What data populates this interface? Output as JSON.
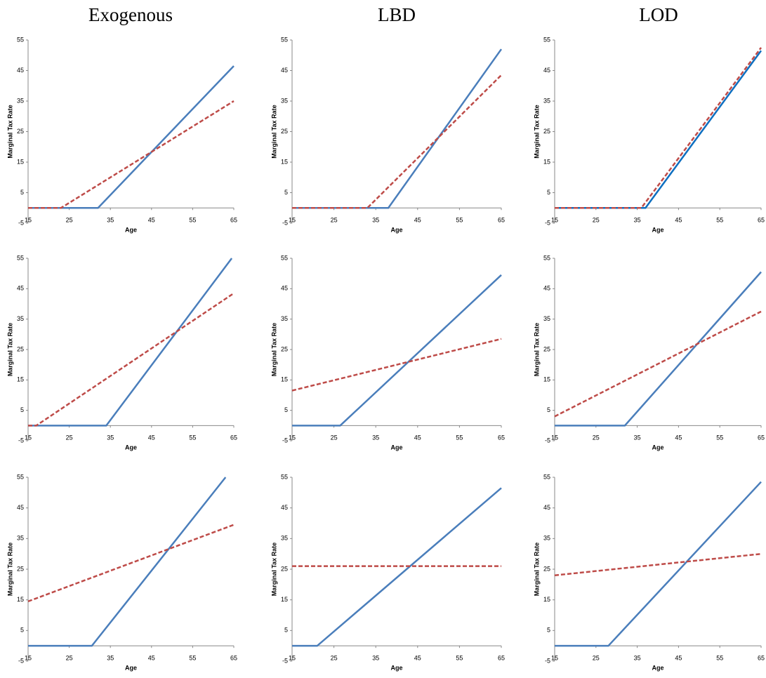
{
  "column_titles": [
    "Exogenous",
    "LBD",
    "LOD"
  ],
  "chart_data": [
    {
      "type": "line",
      "xlabel": "Age",
      "ylabel": "Marginal Tax Rate",
      "xlim": [
        15,
        65
      ],
      "ylim": [
        -5,
        55
      ],
      "xticks": [
        15,
        25,
        35,
        45,
        55,
        65
      ],
      "yticks": [
        -5,
        5,
        15,
        25,
        35,
        45,
        55
      ],
      "series": [
        {
          "color": "#4a7ebb",
          "dashed": false,
          "x": [
            15,
            32,
            65
          ],
          "values": [
            0,
            0,
            46.5
          ]
        },
        {
          "color": "#be4b48",
          "dashed": true,
          "x": [
            15,
            23,
            65
          ],
          "values": [
            0,
            0,
            35
          ]
        }
      ]
    },
    {
      "type": "line",
      "xlabel": "Age",
      "ylabel": "Marginal Tax Rate",
      "xlim": [
        15,
        65
      ],
      "ylim": [
        -5,
        55
      ],
      "xticks": [
        15,
        25,
        35,
        45,
        55,
        65
      ],
      "yticks": [
        -5,
        5,
        15,
        25,
        35,
        45,
        55
      ],
      "series": [
        {
          "color": "#4a7ebb",
          "dashed": false,
          "x": [
            15,
            38,
            65
          ],
          "values": [
            0,
            0,
            52
          ]
        },
        {
          "color": "#be4b48",
          "dashed": true,
          "x": [
            15,
            33,
            65
          ],
          "values": [
            0,
            0,
            43.5
          ]
        }
      ]
    },
    {
      "type": "line",
      "xlabel": "Age",
      "ylabel": "Marginal Tax Rate",
      "xlim": [
        15,
        65
      ],
      "ylim": [
        -5,
        55
      ],
      "xticks": [
        15,
        25,
        35,
        45,
        55,
        65
      ],
      "yticks": [
        -5,
        5,
        15,
        25,
        35,
        45,
        55
      ],
      "series": [
        {
          "color": "#0e6fc0",
          "dashed": false,
          "x": [
            15,
            37,
            65
          ],
          "values": [
            0,
            0,
            51.5
          ]
        },
        {
          "color": "#be4b48",
          "dashed": true,
          "x": [
            15,
            36,
            65
          ],
          "values": [
            0,
            0,
            52.5
          ]
        }
      ]
    },
    {
      "type": "line",
      "xlabel": "Age",
      "ylabel": "Marginal Tax Rate",
      "xlim": [
        15,
        65
      ],
      "ylim": [
        -5,
        55
      ],
      "xticks": [
        15,
        25,
        35,
        45,
        55,
        65
      ],
      "yticks": [
        -5,
        5,
        15,
        25,
        35,
        45,
        55
      ],
      "series": [
        {
          "color": "#4a7ebb",
          "dashed": false,
          "x": [
            15,
            34,
            64.5
          ],
          "values": [
            0,
            0,
            55
          ]
        },
        {
          "color": "#be4b48",
          "dashed": true,
          "x": [
            15,
            17,
            65
          ],
          "values": [
            0,
            0,
            43.5
          ]
        }
      ]
    },
    {
      "type": "line",
      "xlabel": "Age",
      "ylabel": "Marginal Tax Rate",
      "xlim": [
        15,
        65
      ],
      "ylim": [
        -5,
        55
      ],
      "xticks": [
        15,
        25,
        35,
        45,
        55,
        65
      ],
      "yticks": [
        -5,
        5,
        15,
        25,
        35,
        45,
        55
      ],
      "series": [
        {
          "color": "#4a7ebb",
          "dashed": false,
          "x": [
            15,
            26.5,
            65
          ],
          "values": [
            0,
            0,
            49.5
          ]
        },
        {
          "color": "#be4b48",
          "dashed": true,
          "x": [
            15,
            65
          ],
          "values": [
            11.5,
            28.5
          ]
        }
      ]
    },
    {
      "type": "line",
      "xlabel": "Age",
      "ylabel": "Marginal Tax Rate",
      "xlim": [
        15,
        65
      ],
      "ylim": [
        -5,
        55
      ],
      "xticks": [
        15,
        25,
        35,
        45,
        55,
        65
      ],
      "yticks": [
        -5,
        5,
        15,
        25,
        35,
        45,
        55
      ],
      "series": [
        {
          "color": "#4a7ebb",
          "dashed": false,
          "x": [
            15,
            32,
            65
          ],
          "values": [
            0,
            0,
            50.5
          ]
        },
        {
          "color": "#be4b48",
          "dashed": true,
          "x": [
            15,
            65
          ],
          "values": [
            3,
            37.5
          ]
        }
      ]
    },
    {
      "type": "line",
      "xlabel": "Age",
      "ylabel": "Marginal Tax Rate",
      "xlim": [
        15,
        65
      ],
      "ylim": [
        -5,
        55
      ],
      "xticks": [
        15,
        25,
        35,
        45,
        55,
        65
      ],
      "yticks": [
        -5,
        5,
        15,
        25,
        35,
        45,
        55
      ],
      "series": [
        {
          "color": "#4a7ebb",
          "dashed": false,
          "x": [
            15,
            30.5,
            63
          ],
          "values": [
            0,
            0,
            55
          ]
        },
        {
          "color": "#be4b48",
          "dashed": true,
          "x": [
            15,
            65
          ],
          "values": [
            14.5,
            39.5
          ]
        }
      ]
    },
    {
      "type": "line",
      "xlabel": "Age",
      "ylabel": "Marginal Tax Rate",
      "xlim": [
        15,
        65
      ],
      "ylim": [
        -5,
        55
      ],
      "xticks": [
        15,
        25,
        35,
        45,
        55,
        65
      ],
      "yticks": [
        -5,
        5,
        15,
        25,
        35,
        45,
        55
      ],
      "series": [
        {
          "color": "#4a7ebb",
          "dashed": false,
          "x": [
            15,
            21,
            65
          ],
          "values": [
            0,
            0,
            51.5
          ]
        },
        {
          "color": "#be4b48",
          "dashed": true,
          "x": [
            15,
            65
          ],
          "values": [
            26,
            26
          ]
        }
      ]
    },
    {
      "type": "line",
      "xlabel": "Age",
      "ylabel": "Marginal Tax Rate",
      "xlim": [
        15,
        65
      ],
      "ylim": [
        -5,
        55
      ],
      "xticks": [
        15,
        25,
        35,
        45,
        55,
        65
      ],
      "yticks": [
        -5,
        5,
        15,
        25,
        35,
        45,
        55
      ],
      "series": [
        {
          "color": "#4a7ebb",
          "dashed": false,
          "x": [
            15,
            28,
            65
          ],
          "values": [
            0,
            0,
            53.5
          ]
        },
        {
          "color": "#be4b48",
          "dashed": true,
          "x": [
            15,
            65
          ],
          "values": [
            23,
            30
          ]
        }
      ]
    }
  ]
}
